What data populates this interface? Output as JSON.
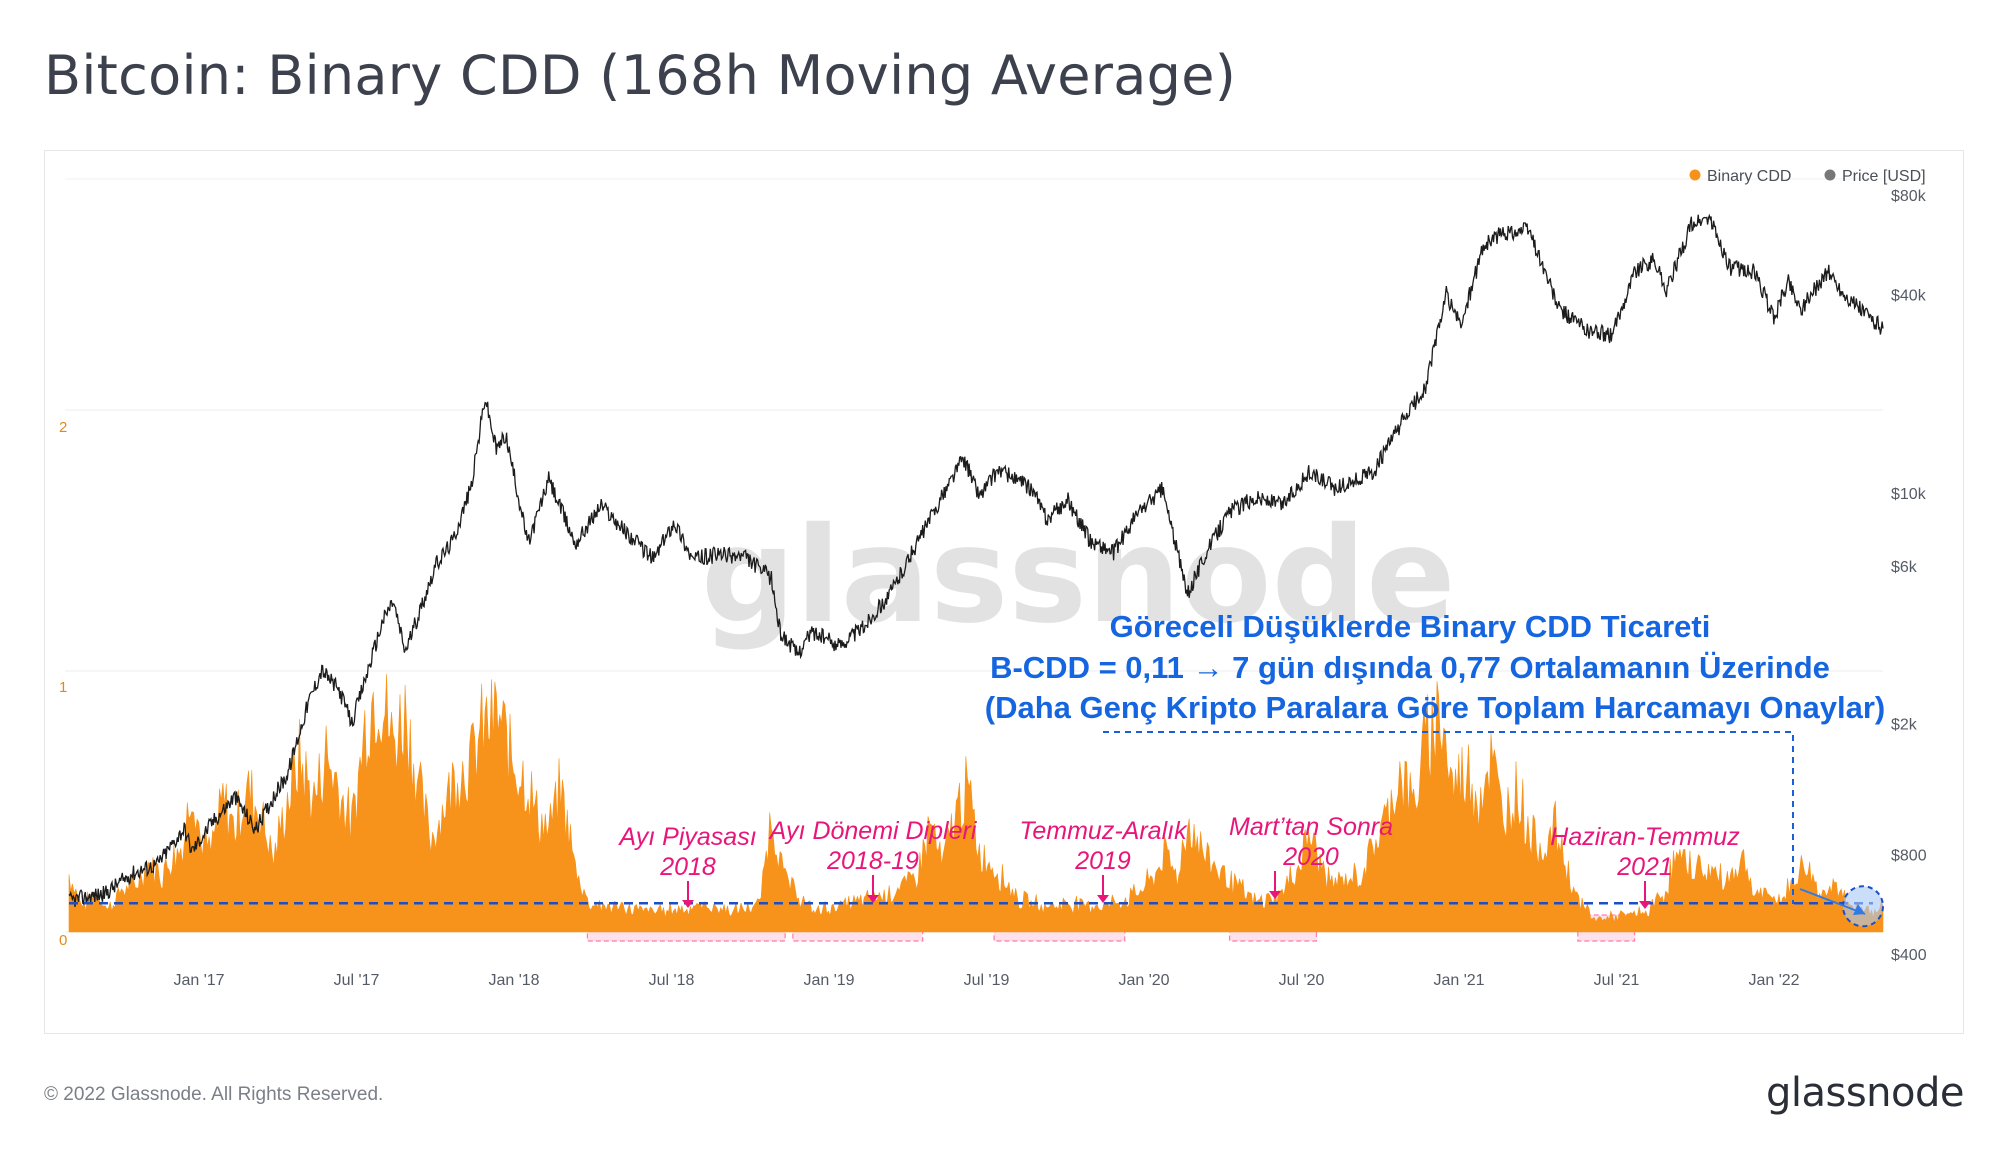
{
  "header": {
    "title": "Bitcoin: Binary CDD (168h Moving Average)"
  },
  "footer": {
    "copyright": "© 2022 Glassnode. All Rights Reserved.",
    "logo": "glassnode"
  },
  "watermark": "glassnode",
  "colors": {
    "cdd": "#f7931a",
    "price": "#1c1c1c",
    "annotation": "#e8167a",
    "note": "#1565e0",
    "highlight": "#ffc8df",
    "average_line": "#1a4fc7"
  },
  "chart_data": {
    "type": "area",
    "legend": [
      {
        "name": "Binary CDD",
        "color": "#f7931a"
      },
      {
        "name": "Price [USD]",
        "color": "#777777"
      }
    ],
    "legend_position": "top-right",
    "x_ticks": [
      "Jan '17",
      "Jul '17",
      "Jan '18",
      "Jul '18",
      "Jan '19",
      "Jul '19",
      "Jan '20",
      "Jul '20",
      "Jan '21",
      "Jul '21",
      "Jan '22"
    ],
    "x_range": [
      "2016-08-20",
      "2022-05-31"
    ],
    "left_axis": {
      "ticks": [
        "0",
        "1",
        "2"
      ],
      "range": [
        0,
        3
      ]
    },
    "right_axis": {
      "scale": "log",
      "ticks": [
        "$400",
        "$800",
        "$2k",
        "$6k",
        "$10k",
        "$40k",
        "$80k"
      ],
      "range": [
        400,
        80000
      ]
    },
    "average_value": 0.11,
    "series": [
      {
        "name": "Binary CDD",
        "points": [
          [
            "2016-08-20",
            0.22
          ],
          [
            "2016-09-05",
            0.1
          ],
          [
            "2016-09-20",
            0.14
          ],
          [
            "2016-10-05",
            0.09
          ],
          [
            "2016-10-20",
            0.16
          ],
          [
            "2016-11-05",
            0.18
          ],
          [
            "2016-11-20",
            0.26
          ],
          [
            "2016-12-05",
            0.22
          ],
          [
            "2016-12-20",
            0.3
          ],
          [
            "2017-01-01",
            0.34
          ],
          [
            "2017-01-10",
            0.6
          ],
          [
            "2017-01-20",
            0.35
          ],
          [
            "2017-02-01",
            0.3
          ],
          [
            "2017-02-15",
            0.5
          ],
          [
            "2017-03-01",
            0.4
          ],
          [
            "2017-03-15",
            0.55
          ],
          [
            "2017-04-01",
            0.45
          ],
          [
            "2017-04-15",
            0.28
          ],
          [
            "2017-05-01",
            0.5
          ],
          [
            "2017-05-15",
            0.66
          ],
          [
            "2017-06-01",
            0.5
          ],
          [
            "2017-06-15",
            0.68
          ],
          [
            "2017-07-01",
            0.55
          ],
          [
            "2017-07-15",
            0.4
          ],
          [
            "2017-08-01",
            0.82
          ],
          [
            "2017-08-15",
            0.95
          ],
          [
            "2017-09-01",
            0.72
          ],
          [
            "2017-09-15",
            0.85
          ],
          [
            "2017-10-01",
            0.55
          ],
          [
            "2017-10-15",
            0.35
          ],
          [
            "2017-11-01",
            0.5
          ],
          [
            "2017-11-15",
            0.62
          ],
          [
            "2017-12-01",
            0.65
          ],
          [
            "2017-12-15",
            0.78
          ],
          [
            "2018-01-01",
            0.82
          ],
          [
            "2018-01-15",
            0.68
          ],
          [
            "2018-02-01",
            0.6
          ],
          [
            "2018-02-15",
            0.45
          ],
          [
            "2018-03-01",
            0.38
          ],
          [
            "2018-03-15",
            0.55
          ],
          [
            "2018-04-01",
            0.25
          ],
          [
            "2018-04-15",
            0.12
          ],
          [
            "2018-05-01",
            0.1
          ],
          [
            "2018-06-01",
            0.09
          ],
          [
            "2018-07-01",
            0.08
          ],
          [
            "2018-08-01",
            0.09
          ],
          [
            "2018-09-01",
            0.1
          ],
          [
            "2018-10-01",
            0.08
          ],
          [
            "2018-11-01",
            0.1
          ],
          [
            "2018-11-15",
            0.45
          ],
          [
            "2018-12-01",
            0.2
          ],
          [
            "2019-01-01",
            0.08
          ],
          [
            "2019-02-01",
            0.1
          ],
          [
            "2019-03-01",
            0.12
          ],
          [
            "2019-04-01",
            0.15
          ],
          [
            "2019-05-01",
            0.2
          ],
          [
            "2019-05-20",
            0.42
          ],
          [
            "2019-06-01",
            0.25
          ],
          [
            "2019-06-20",
            0.48
          ],
          [
            "2019-07-01",
            0.55
          ],
          [
            "2019-07-15",
            0.3
          ],
          [
            "2019-08-01",
            0.25
          ],
          [
            "2019-09-01",
            0.12
          ],
          [
            "2019-10-01",
            0.1
          ],
          [
            "2019-11-01",
            0.11
          ],
          [
            "2019-12-01",
            0.1
          ],
          [
            "2020-01-01",
            0.12
          ],
          [
            "2020-02-01",
            0.2
          ],
          [
            "2020-02-15",
            0.3
          ],
          [
            "2020-03-01",
            0.22
          ],
          [
            "2020-03-15",
            0.42
          ],
          [
            "2020-04-01",
            0.3
          ],
          [
            "2020-05-01",
            0.2
          ],
          [
            "2020-06-01",
            0.11
          ],
          [
            "2020-07-01",
            0.15
          ],
          [
            "2020-07-20",
            0.25
          ],
          [
            "2020-08-01",
            0.38
          ],
          [
            "2020-08-20",
            0.22
          ],
          [
            "2020-09-01",
            0.18
          ],
          [
            "2020-10-01",
            0.22
          ],
          [
            "2020-10-20",
            0.36
          ],
          [
            "2020-11-01",
            0.45
          ],
          [
            "2020-11-15",
            0.62
          ],
          [
            "2020-12-01",
            0.48
          ],
          [
            "2020-12-15",
            0.72
          ],
          [
            "2021-01-01",
            0.86
          ],
          [
            "2021-01-15",
            0.55
          ],
          [
            "2021-02-01",
            0.62
          ],
          [
            "2021-02-15",
            0.52
          ],
          [
            "2021-03-01",
            0.66
          ],
          [
            "2021-03-15",
            0.44
          ],
          [
            "2021-04-01",
            0.55
          ],
          [
            "2021-04-15",
            0.38
          ],
          [
            "2021-05-01",
            0.32
          ],
          [
            "2021-05-15",
            0.4
          ],
          [
            "2021-06-01",
            0.2
          ],
          [
            "2021-06-15",
            0.1
          ],
          [
            "2021-07-01",
            0.05
          ],
          [
            "2021-08-01",
            0.06
          ],
          [
            "2021-09-01",
            0.08
          ],
          [
            "2021-09-20",
            0.16
          ],
          [
            "2021-10-01",
            0.28
          ],
          [
            "2021-11-01",
            0.24
          ],
          [
            "2021-12-01",
            0.2
          ],
          [
            "2021-12-20",
            0.28
          ],
          [
            "2022-01-01",
            0.15
          ],
          [
            "2022-02-01",
            0.12
          ],
          [
            "2022-03-01",
            0.26
          ],
          [
            "2022-03-20",
            0.14
          ],
          [
            "2022-04-01",
            0.2
          ],
          [
            "2022-04-20",
            0.1
          ],
          [
            "2022-05-10",
            0.08
          ],
          [
            "2022-05-31",
            0.1
          ]
        ]
      },
      {
        "name": "Price [USD]",
        "points": [
          [
            "2016-08-20",
            580
          ],
          [
            "2016-10-01",
            610
          ],
          [
            "2016-11-01",
            700
          ],
          [
            "2016-12-01",
            750
          ],
          [
            "2017-01-01",
            960
          ],
          [
            "2017-01-10",
            820
          ],
          [
            "2017-02-01",
            990
          ],
          [
            "2017-03-01",
            1200
          ],
          [
            "2017-03-25",
            950
          ],
          [
            "2017-04-15",
            1200
          ],
          [
            "2017-05-01",
            1400
          ],
          [
            "2017-05-25",
            2300
          ],
          [
            "2017-06-10",
            2900
          ],
          [
            "2017-07-01",
            2500
          ],
          [
            "2017-07-15",
            2000
          ],
          [
            "2017-08-01",
            2800
          ],
          [
            "2017-08-20",
            4100
          ],
          [
            "2017-09-01",
            4700
          ],
          [
            "2017-09-15",
            3300
          ],
          [
            "2017-10-01",
            4300
          ],
          [
            "2017-10-20",
            6000
          ],
          [
            "2017-11-10",
            7200
          ],
          [
            "2017-12-01",
            10500
          ],
          [
            "2017-12-17",
            19500
          ],
          [
            "2017-12-30",
            13500
          ],
          [
            "2018-01-10",
            15000
          ],
          [
            "2018-02-05",
            7000
          ],
          [
            "2018-03-01",
            11000
          ],
          [
            "2018-04-01",
            7000
          ],
          [
            "2018-05-01",
            9200
          ],
          [
            "2018-06-01",
            7500
          ],
          [
            "2018-07-01",
            6300
          ],
          [
            "2018-07-25",
            8200
          ],
          [
            "2018-08-15",
            6300
          ],
          [
            "2018-09-15",
            6500
          ],
          [
            "2018-10-15",
            6400
          ],
          [
            "2018-11-15",
            5500
          ],
          [
            "2018-11-25",
            3800
          ],
          [
            "2018-12-15",
            3250
          ],
          [
            "2019-01-01",
            3800
          ],
          [
            "2019-02-01",
            3450
          ],
          [
            "2019-03-01",
            3900
          ],
          [
            "2019-04-01",
            4900
          ],
          [
            "2019-05-15",
            8000
          ],
          [
            "2019-06-26",
            12800
          ],
          [
            "2019-07-15",
            9800
          ],
          [
            "2019-08-06",
            11800
          ],
          [
            "2019-09-15",
            10200
          ],
          [
            "2019-10-01",
            8300
          ],
          [
            "2019-10-26",
            9500
          ],
          [
            "2019-11-20",
            7200
          ],
          [
            "2019-12-18",
            6600
          ],
          [
            "2020-01-15",
            8700
          ],
          [
            "2020-02-13",
            10300
          ],
          [
            "2020-03-13",
            4900
          ],
          [
            "2020-04-01",
            6400
          ],
          [
            "2020-05-01",
            8800
          ],
          [
            "2020-06-01",
            9700
          ],
          [
            "2020-07-01",
            9200
          ],
          [
            "2020-08-01",
            11500
          ],
          [
            "2020-09-01",
            10300
          ],
          [
            "2020-10-15",
            11500
          ],
          [
            "2020-11-15",
            16000
          ],
          [
            "2020-12-15",
            21000
          ],
          [
            "2021-01-08",
            40000
          ],
          [
            "2021-01-25",
            32000
          ],
          [
            "2021-02-20",
            56000
          ],
          [
            "2021-03-13",
            61000
          ],
          [
            "2021-04-14",
            63000
          ],
          [
            "2021-05-19",
            36000
          ],
          [
            "2021-06-22",
            31000
          ],
          [
            "2021-07-20",
            30000
          ],
          [
            "2021-08-15",
            47000
          ],
          [
            "2021-09-07",
            51000
          ],
          [
            "2021-09-21",
            41000
          ],
          [
            "2021-10-20",
            65000
          ],
          [
            "2021-11-10",
            68000
          ],
          [
            "2021-12-04",
            48000
          ],
          [
            "2022-01-01",
            47000
          ],
          [
            "2022-01-24",
            34000
          ],
          [
            "2022-02-10",
            44000
          ],
          [
            "2022-02-24",
            36000
          ],
          [
            "2022-03-28",
            47000
          ],
          [
            "2022-04-15",
            40000
          ],
          [
            "2022-05-05",
            36000
          ],
          [
            "2022-05-31",
            31500
          ]
        ]
      }
    ],
    "highlight_periods": [
      {
        "label_line1": "Ayı Piyasası",
        "label_line2": "2018",
        "start": "2018-04-15",
        "end": "2018-12-01"
      },
      {
        "label_line1": "Ayı Dönemi Dipleri",
        "label_line2": "2018-19",
        "start": "2018-12-10",
        "end": "2019-05-10"
      },
      {
        "label_line1": "Temmuz-Aralık",
        "label_line2": "2019",
        "start": "2019-08-01",
        "end": "2019-12-31"
      },
      {
        "label_line1": "Mart’tan Sonra",
        "label_line2": "2020",
        "start": "2020-05-01",
        "end": "2020-08-10"
      },
      {
        "label_line1": "Haziran-Temmuz",
        "label_line2": "2021",
        "start": "2021-06-10",
        "end": "2021-08-15"
      }
    ],
    "note_lines": [
      "Göreceli Düşüklerde Binary CDD Ticareti",
      "B-CDD = 0,11 → 7 gün dışında 0,77 Ortalamanın Üzerinde",
      "(Daha Genç Kripto Paralara Göre Toplam Harcamayı Onaylar)"
    ]
  }
}
